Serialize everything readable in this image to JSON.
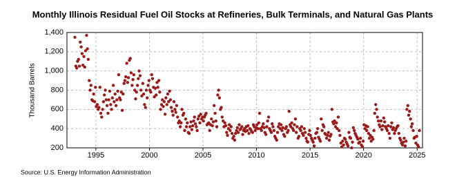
{
  "chart_data": {
    "type": "scatter",
    "title": "Monthly Illinois Residual Fuel Oil Stocks at Refineries, Bulk Terminals, and Natural Gas Plants",
    "y_label": "Thousand Barrels",
    "source": "Source: U.S. Energy Information Administration",
    "color": "#9b1b1b",
    "grid": true,
    "xlim": [
      1992.3,
      2025.5
    ],
    "xticks": [
      1995,
      2000,
      2005,
      2010,
      2015,
      2020,
      2025
    ],
    "ylim": [
      200,
      1400
    ],
    "yticks": [
      200,
      400,
      600,
      800,
      {
        "value": 1000,
        "label": "1,000"
      },
      {
        "value": 1200,
        "label": "1,200"
      },
      {
        "value": 1400,
        "label": "1,400"
      }
    ],
    "x": [
      1993.04,
      1993.13,
      1993.21,
      1993.29,
      1993.38,
      1993.46,
      1993.54,
      1993.63,
      1993.71,
      1993.79,
      1993.88,
      1993.96,
      1994.04,
      1994.13,
      1994.21,
      1994.29,
      1994.38,
      1994.46,
      1994.54,
      1994.63,
      1994.71,
      1994.79,
      1994.88,
      1994.96,
      1995.04,
      1995.13,
      1995.21,
      1995.29,
      1995.38,
      1995.46,
      1995.54,
      1995.63,
      1995.71,
      1995.79,
      1995.88,
      1995.96,
      1996.04,
      1996.13,
      1996.21,
      1996.29,
      1996.38,
      1996.46,
      1996.54,
      1996.63,
      1996.71,
      1996.79,
      1996.88,
      1996.96,
      1997.04,
      1997.13,
      1997.21,
      1997.29,
      1997.38,
      1997.46,
      1997.54,
      1997.63,
      1997.71,
      1997.79,
      1997.88,
      1997.96,
      1998.04,
      1998.13,
      1998.21,
      1998.29,
      1998.38,
      1998.46,
      1998.54,
      1998.63,
      1998.71,
      1998.79,
      1998.88,
      1998.96,
      1999.04,
      1999.13,
      1999.21,
      1999.29,
      1999.38,
      1999.46,
      1999.54,
      1999.63,
      1999.71,
      1999.79,
      1999.88,
      1999.96,
      2000.04,
      2000.13,
      2000.21,
      2000.29,
      2000.38,
      2000.46,
      2000.54,
      2000.63,
      2000.71,
      2000.79,
      2000.88,
      2000.96,
      2001.04,
      2001.13,
      2001.21,
      2001.29,
      2001.38,
      2001.46,
      2001.54,
      2001.63,
      2001.71,
      2001.79,
      2001.88,
      2001.96,
      2002.04,
      2002.13,
      2002.21,
      2002.29,
      2002.38,
      2002.46,
      2002.54,
      2002.63,
      2002.71,
      2002.79,
      2002.88,
      2002.96,
      2003.04,
      2003.13,
      2003.21,
      2003.29,
      2003.38,
      2003.46,
      2003.54,
      2003.63,
      2003.71,
      2003.79,
      2003.88,
      2003.96,
      2004.04,
      2004.13,
      2004.21,
      2004.29,
      2004.38,
      2004.46,
      2004.54,
      2004.63,
      2004.71,
      2004.79,
      2004.88,
      2004.96,
      2005.04,
      2005.13,
      2005.21,
      2005.29,
      2005.38,
      2005.46,
      2005.54,
      2005.63,
      2005.71,
      2005.79,
      2005.88,
      2005.96,
      2006.04,
      2006.13,
      2006.21,
      2006.29,
      2006.38,
      2006.46,
      2006.54,
      2006.63,
      2006.71,
      2006.79,
      2006.88,
      2006.96,
      2007.04,
      2007.13,
      2007.21,
      2007.29,
      2007.38,
      2007.46,
      2007.54,
      2007.63,
      2007.71,
      2007.79,
      2007.88,
      2007.96,
      2008.04,
      2008.13,
      2008.21,
      2008.29,
      2008.38,
      2008.46,
      2008.54,
      2008.63,
      2008.71,
      2008.79,
      2008.88,
      2008.96,
      2009.04,
      2009.13,
      2009.21,
      2009.29,
      2009.38,
      2009.46,
      2009.54,
      2009.63,
      2009.71,
      2009.79,
      2009.88,
      2009.96,
      2010.04,
      2010.13,
      2010.21,
      2010.29,
      2010.38,
      2010.46,
      2010.54,
      2010.63,
      2010.71,
      2010.79,
      2010.88,
      2010.96,
      2011.04,
      2011.13,
      2011.21,
      2011.29,
      2011.38,
      2011.46,
      2011.54,
      2011.63,
      2011.71,
      2011.79,
      2011.88,
      2011.96,
      2012.04,
      2012.13,
      2012.21,
      2012.29,
      2012.38,
      2012.46,
      2012.54,
      2012.63,
      2012.71,
      2012.79,
      2012.88,
      2012.96,
      2013.04,
      2013.13,
      2013.21,
      2013.29,
      2013.38,
      2013.46,
      2013.54,
      2013.63,
      2013.71,
      2013.79,
      2013.88,
      2013.96,
      2014.04,
      2014.13,
      2014.21,
      2014.29,
      2014.38,
      2014.46,
      2014.54,
      2014.63,
      2014.71,
      2014.79,
      2014.88,
      2014.96,
      2015.04,
      2015.13,
      2015.21,
      2015.29,
      2015.38,
      2015.46,
      2015.54,
      2015.63,
      2015.71,
      2015.79,
      2015.88,
      2015.96,
      2016.04,
      2016.13,
      2016.21,
      2016.29,
      2016.38,
      2016.46,
      2016.54,
      2016.63,
      2016.71,
      2016.79,
      2016.88,
      2016.96,
      2017.04,
      2017.13,
      2017.21,
      2017.29,
      2017.38,
      2017.46,
      2017.54,
      2017.63,
      2017.71,
      2017.79,
      2017.88,
      2017.96,
      2018.04,
      2018.13,
      2018.21,
      2018.29,
      2018.38,
      2018.46,
      2018.54,
      2018.63,
      2018.71,
      2018.79,
      2018.88,
      2018.96,
      2019.04,
      2019.13,
      2019.21,
      2019.29,
      2019.38,
      2019.46,
      2019.54,
      2019.63,
      2019.71,
      2019.79,
      2019.88,
      2019.96,
      2020.04,
      2020.13,
      2020.21,
      2020.29,
      2020.38,
      2020.46,
      2020.54,
      2020.63,
      2020.71,
      2020.79,
      2020.88,
      2020.96,
      2021.04,
      2021.13,
      2021.21,
      2021.29,
      2021.38,
      2021.46,
      2021.54,
      2021.63,
      2021.71,
      2021.79,
      2021.88,
      2021.96,
      2022.04,
      2022.13,
      2022.21,
      2022.29,
      2022.38,
      2022.46,
      2022.54,
      2022.63,
      2022.71,
      2022.79,
      2022.88,
      2022.96,
      2023.04,
      2023.13,
      2023.21,
      2023.29,
      2023.38,
      2023.46,
      2023.54,
      2023.63,
      2023.71,
      2023.79,
      2023.88,
      2023.96,
      2024.04,
      2024.13,
      2024.21,
      2024.29,
      2024.38,
      2024.46,
      2024.54,
      2024.63,
      2024.71,
      2024.79,
      2024.88,
      2024.96,
      2025.04,
      2025.13,
      2025.21
    ],
    "values": [
      1350,
      1050,
      1030,
      1100,
      1120,
      1050,
      1300,
      1250,
      1180,
      1060,
      1150,
      1040,
      1210,
      1370,
      1230,
      1120,
      900,
      800,
      850,
      700,
      690,
      760,
      680,
      830,
      630,
      650,
      600,
      620,
      830,
      560,
      520,
      600,
      680,
      750,
      800,
      700,
      640,
      560,
      700,
      790,
      650,
      600,
      720,
      850,
      680,
      760,
      640,
      700,
      790,
      960,
      720,
      700,
      780,
      590,
      760,
      870,
      900,
      940,
      1080,
      880,
      930,
      1110,
      1130,
      980,
      850,
      910,
      960,
      800,
      710,
      780,
      850,
      920,
      1000,
      950,
      800,
      740,
      870,
      760,
      650,
      620,
      800,
      720,
      850,
      900,
      800,
      780,
      960,
      920,
      830,
      730,
      820,
      750,
      880,
      830,
      900,
      780,
      600,
      650,
      700,
      630,
      680,
      550,
      720,
      650,
      760,
      680,
      790,
      700,
      620,
      580,
      540,
      680,
      600,
      570,
      640,
      520,
      460,
      480,
      420,
      460,
      600,
      540,
      560,
      380,
      500,
      420,
      460,
      360,
      350,
      420,
      470,
      390,
      430,
      480,
      520,
      450,
      420,
      380,
      500,
      530,
      460,
      550,
      500,
      520,
      480,
      520,
      540,
      560,
      440,
      450,
      460,
      380,
      440,
      500,
      430,
      470,
      640,
      560,
      480,
      420,
      750,
      800,
      720,
      600,
      620,
      520,
      480,
      420,
      460,
      430,
      360,
      330,
      400,
      440,
      380,
      420,
      350,
      300,
      320,
      280,
      350,
      380,
      410,
      360,
      440,
      390,
      400,
      420,
      340,
      380,
      400,
      370,
      420,
      380,
      430,
      350,
      400,
      390,
      370,
      360,
      440,
      420,
      380,
      410,
      440,
      400,
      460,
      560,
      400,
      380,
      420,
      450,
      410,
      360,
      340,
      420,
      480,
      520,
      400,
      380,
      360,
      450,
      420,
      380,
      320,
      300,
      280,
      360,
      420,
      450,
      400,
      440,
      380,
      410,
      340,
      320,
      400,
      420,
      360,
      380,
      580,
      440,
      420,
      460,
      400,
      380,
      440,
      500,
      360,
      420,
      300,
      320,
      400,
      380,
      420,
      350,
      330,
      400,
      360,
      300,
      270,
      260,
      340,
      380,
      330,
      300,
      280,
      260,
      220,
      300,
      350,
      360,
      400,
      310,
      290,
      270,
      500,
      380,
      440,
      420,
      350,
      340,
      300,
      330,
      360,
      280,
      320,
      340,
      600,
      470,
      450,
      480,
      420,
      460,
      400,
      520,
      380,
      330,
      250,
      210,
      270,
      230,
      300,
      290,
      260,
      240,
      220,
      360,
      310,
      300,
      200,
      260,
      410,
      380,
      350,
      330,
      310,
      290,
      250,
      260,
      300,
      230,
      210,
      270,
      440,
      400,
      430,
      380,
      420,
      350,
      300,
      330,
      270,
      310,
      290,
      380,
      560,
      650,
      600,
      520,
      480,
      440,
      420,
      480,
      390,
      430,
      510,
      470,
      420,
      400,
      380,
      430,
      350,
      300,
      420,
      460,
      390,
      410,
      350,
      380,
      400,
      420,
      430,
      350,
      300,
      280,
      250,
      230,
      260,
      300,
      220,
      270,
      600,
      640,
      540,
      580,
      500,
      420,
      450,
      380,
      300,
      310,
      250,
      320,
      230,
      210,
      380
    ]
  }
}
